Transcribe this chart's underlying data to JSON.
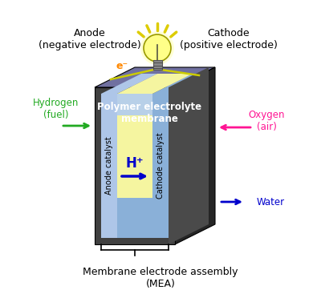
{
  "title": "Membrane electrode assembly\n(MEA)",
  "anode_label": "Anode\n(negative electrode)",
  "cathode_label": "Cathode\n(positive electrode)",
  "hydrogen_label": "Hydrogen\n(fuel)",
  "oxygen_label": "Oxygen\n(air)",
  "water_label": "Water",
  "membrane_label": "Polymer electrolyte\nmembrane",
  "anode_catalyst_label": "Anode catalyst",
  "cathode_catalyst_label": "Cathode catalyst",
  "hplus_label": "H⁺",
  "electron_label": "e⁻",
  "bg_color": "#ffffff",
  "dark_gray": "#404040",
  "side_dark": "#252525",
  "top_face_color": "#7070a0",
  "top_face_edge": "#505070",
  "anode_catalyst_color": "#aec6e8",
  "cathode_catalyst_color": "#8ab0d8",
  "membrane_yellow": "#f5f5a0",
  "membrane_blue": "#b8d0e8",
  "green_color": "#22aa22",
  "pink_color": "#ff1493",
  "blue_color": "#0000cc",
  "orange_color": "#ff8800",
  "yellow_bulb": "#ffff88",
  "yellow_bright": "#ffff00",
  "yellow_rays": "#ddcc00",
  "wire_color": "#cccc00",
  "bulb_outline": "#999900",
  "bulb_base": "#888888",
  "white": "#ffffff"
}
